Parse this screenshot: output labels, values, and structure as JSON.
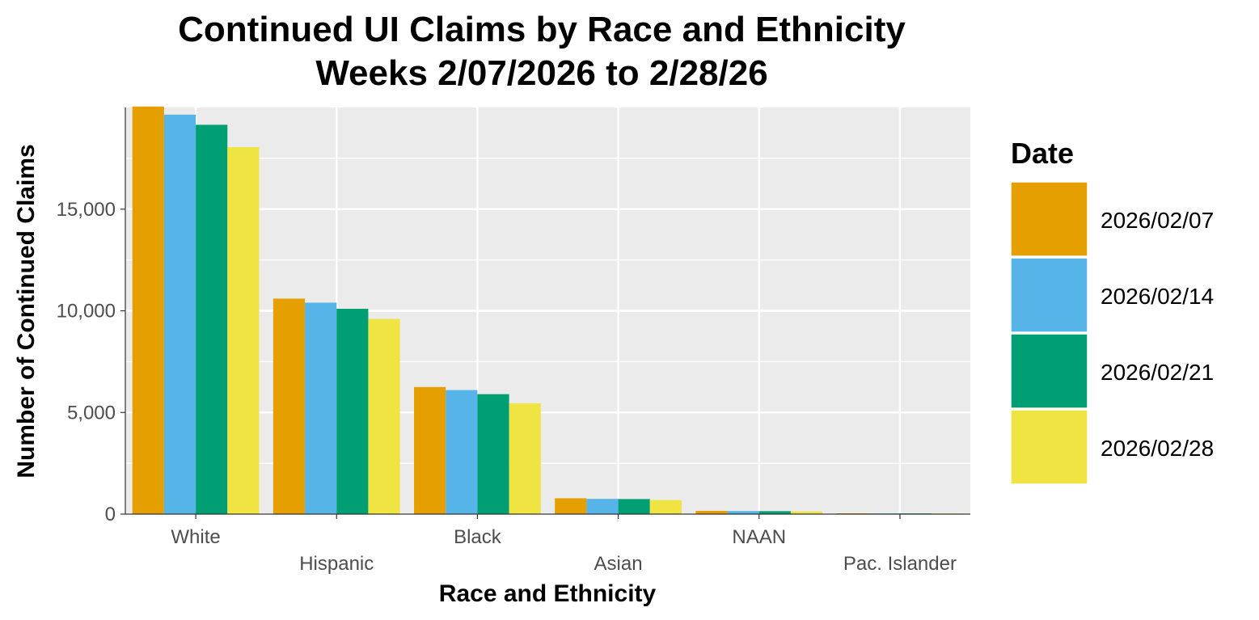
{
  "title_line1": "Continued UI Claims by Race and Ethnicity",
  "title_line2": "Weeks 2/07/2026 to 2/28/26",
  "chart_data": {
    "type": "bar",
    "title": "Continued UI Claims by Race and Ethnicity\nWeeks 2/07/2026 to 2/28/26",
    "xlabel": "Race and Ethnicity",
    "ylabel": "Number of Continued Claims",
    "categories": [
      "White",
      "Hispanic",
      "Black",
      "Asian",
      "NAAN",
      "Pac. Islander"
    ],
    "ylim": [
      0,
      20000
    ],
    "yticks": [
      0,
      5000,
      10000,
      15000
    ],
    "ytick_labels": [
      "0",
      "5,000",
      "10,000",
      "15,000"
    ],
    "legend_title": "Date",
    "legend_position": "right",
    "grid": true,
    "series": [
      {
        "name": "2026/02/07",
        "color": "#E69F00",
        "values": [
          20050,
          10600,
          6250,
          780,
          160,
          40
        ]
      },
      {
        "name": "2026/02/14",
        "color": "#56B4E9",
        "values": [
          19650,
          10400,
          6100,
          750,
          150,
          35
        ]
      },
      {
        "name": "2026/02/21",
        "color": "#009E73",
        "values": [
          19150,
          10100,
          5900,
          740,
          145,
          35
        ]
      },
      {
        "name": "2026/02/28",
        "color": "#F0E442",
        "values": [
          18050,
          9600,
          5450,
          690,
          130,
          30
        ]
      }
    ]
  }
}
